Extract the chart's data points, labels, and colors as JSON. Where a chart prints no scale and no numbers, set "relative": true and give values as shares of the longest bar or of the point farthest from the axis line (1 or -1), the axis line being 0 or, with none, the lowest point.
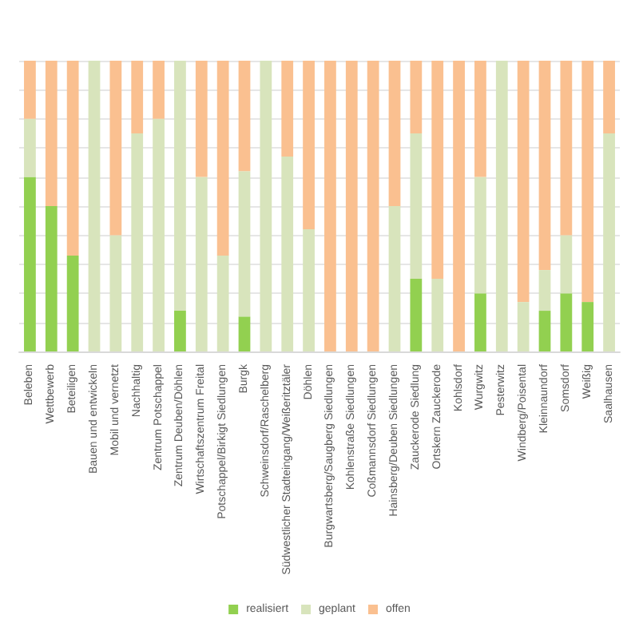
{
  "chart_data": {
    "type": "bar",
    "stacked": true,
    "relative": true,
    "grid": "y",
    "legend": "bottom",
    "categories": [
      "Beleben",
      "Wettbewerb",
      "Beteiligen",
      "Bauen und entwickeln",
      "Mobil und vernetzt",
      "Nachhaltig",
      "Zentrum Potschappel",
      "Zentrum Deuben/Döhlen",
      "Wirtschaftszentrum Freital",
      "Potschappel/Birkigt Siedlungen",
      "Burgk",
      "Schweinsdorf/Raschelberg",
      "Südwestlicher Stadteingang/Weißeritztäler",
      "Döhlen",
      "Burgwartsberg/Saugberg Siedlungen",
      "Kohlenstraße Siedlungen",
      "Coßmannsdorf Siedlungen",
      "Hainsberg/Deuben Siedlungen",
      "Zauckerode Siedlung",
      "Ortskern Zauckerode",
      "Kohlsdorf",
      "Wurgwitz",
      "Pesterwitz",
      "Windberg/Poisental",
      "Kleinnaundorf",
      "Somsdorf",
      "Weißig",
      "Saalhausen"
    ],
    "series": [
      {
        "name": "realisiert",
        "color": "#92d050",
        "values": [
          0.6,
          0.5,
          0.33,
          0,
          0,
          0,
          0,
          0.14,
          0,
          0,
          0.12,
          0,
          0,
          0,
          0,
          0,
          0,
          0,
          0.25,
          0,
          0,
          0.2,
          0,
          0,
          0.14,
          0.2,
          0.17,
          0
        ]
      },
      {
        "name": "geplant",
        "color": "#d8e4bc",
        "values": [
          0.2,
          0,
          0,
          1,
          0.4,
          0.75,
          0.8,
          0.86,
          0.6,
          0.33,
          0.5,
          1,
          0.67,
          0.42,
          0,
          0,
          0,
          0.5,
          0.5,
          0.25,
          0,
          0.4,
          1,
          0.17,
          0.14,
          0.2,
          0,
          0.75
        ]
      },
      {
        "name": "offen",
        "color": "#fac090",
        "values": [
          0.2,
          0.5,
          0.67,
          0,
          0.6,
          0.25,
          0.2,
          0,
          0.4,
          0.67,
          0.38,
          0,
          0.33,
          0.58,
          1,
          1,
          1,
          0.5,
          0.25,
          0.75,
          1,
          0.4,
          0,
          0.83,
          0.72,
          0.6,
          0.83,
          0.25
        ]
      }
    ]
  }
}
